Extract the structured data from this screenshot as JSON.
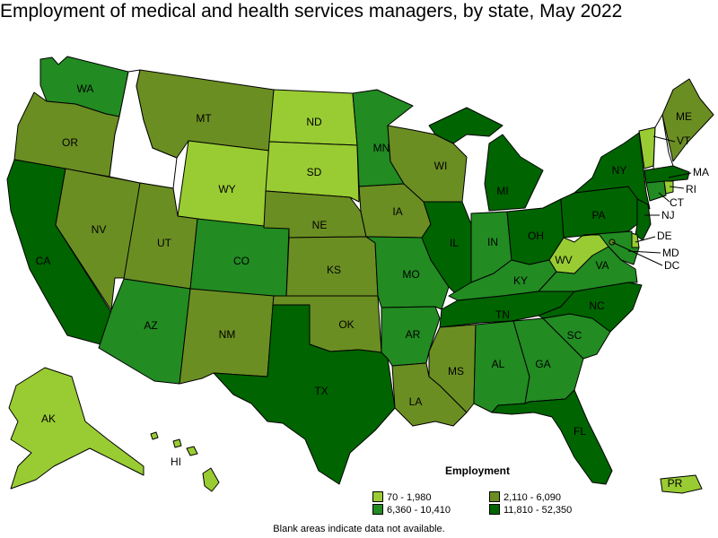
{
  "title": "Employment of medical and health services managers, by state, May 2022",
  "legend": {
    "title": "Employment",
    "bins": [
      {
        "label": "70 - 1,980",
        "color": "#99cc33"
      },
      {
        "label": "2,110 - 6,090",
        "color": "#6b8e23"
      },
      {
        "label": "6,360 - 10,410",
        "color": "#228b22"
      },
      {
        "label": "11,810 - 52,350",
        "color": "#006400"
      }
    ]
  },
  "footnote": "Blank areas indicate data not available.",
  "states": {
    "WA": 2,
    "OR": 1,
    "CA": 3,
    "NV": 1,
    "ID": null,
    "MT": 1,
    "WY": 0,
    "UT": 1,
    "AZ": 2,
    "CO": 2,
    "NM": 1,
    "ND": 0,
    "SD": 0,
    "NE": 1,
    "KS": 1,
    "OK": 1,
    "TX": 3,
    "MN": 2,
    "IA": 1,
    "MO": 2,
    "AR": 2,
    "LA": 1,
    "WI": 1,
    "IL": 3,
    "MI": 3,
    "IN": 2,
    "OH": 3,
    "KY": 2,
    "TN": 3,
    "MS": 1,
    "AL": 2,
    "GA": 2,
    "FL": 3,
    "SC": 2,
    "NC": 3,
    "VA": 2,
    "WV": 0,
    "PA": 3,
    "NY": 3,
    "VT": 0,
    "NH": null,
    "ME": 1,
    "MA": 3,
    "RI": 0,
    "CT": 2,
    "NJ": 3,
    "DE": 0,
    "MD": 2,
    "DC": 1,
    "AK": 0,
    "HI": 0,
    "PR": 0
  }
}
